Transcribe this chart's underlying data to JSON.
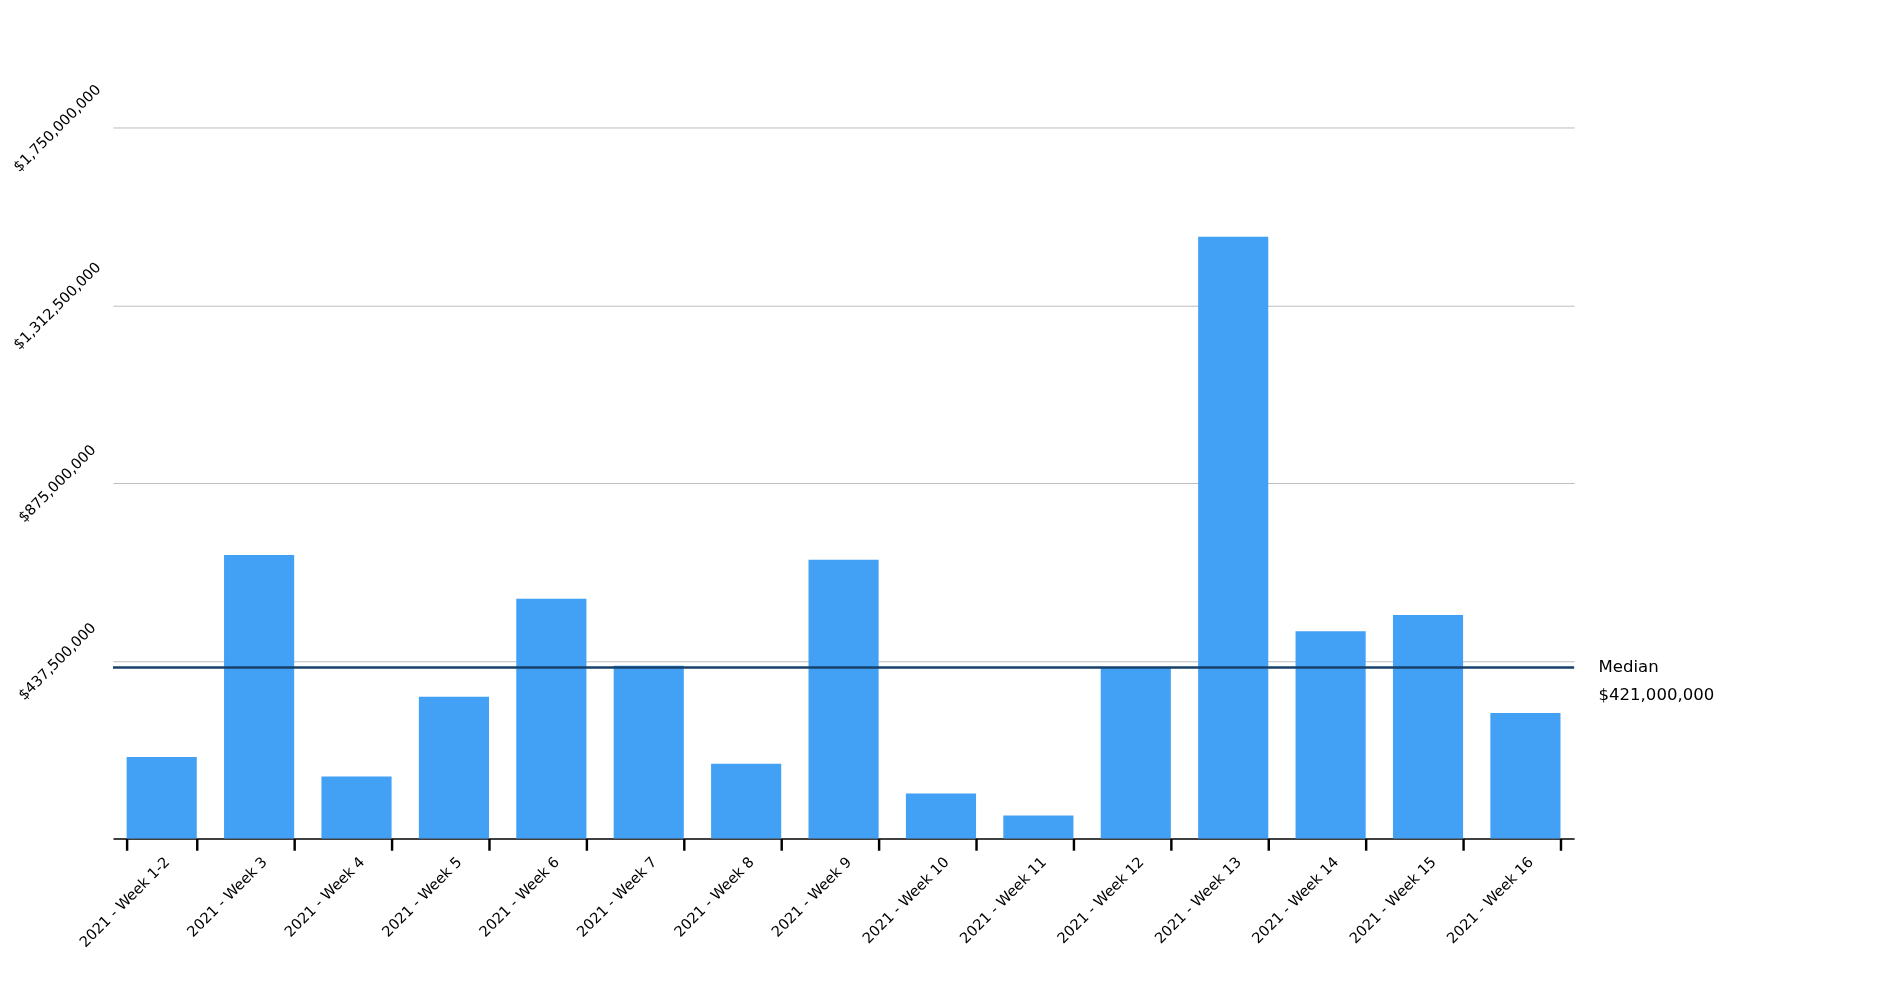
{
  "chart_data": {
    "type": "bar",
    "categories": [
      "2021 - Week 1-2",
      "2021 - Week 3",
      "2021 - Week 4",
      "2021 - Week 5",
      "2021 - Week 6",
      "2021 - Week 7",
      "2021 - Week 8",
      "2021 - Week 9",
      "2021 - Week 10",
      "2021 - Week 11",
      "2021 - Week 12",
      "2021 - Week 13",
      "2021 - Week 14",
      "2021 - Week 15",
      "2021 - Week 16"
    ],
    "values": [
      201000000,
      698000000,
      153000000,
      349000000,
      590000000,
      425000000,
      184000000,
      686000000,
      111000000,
      57000000,
      420000000,
      1481000000,
      510000000,
      550000000,
      309000000
    ],
    "color": "#42a1f5",
    "ylim": [
      0,
      1750000000
    ],
    "yticks": [
      {
        "value": 437500000,
        "label": "$437,500,000"
      },
      {
        "value": 875000000,
        "label": "$875,000,000"
      },
      {
        "value": 1312500000,
        "label": "$1,312,500,000"
      },
      {
        "value": 1750000000,
        "label": "$1,750,000,000"
      }
    ],
    "grid": "y",
    "ref_lines": [
      {
        "axis": "y",
        "value": 421000000,
        "label": "Median\n$421,000,000",
        "color": "#17406b"
      }
    ]
  }
}
